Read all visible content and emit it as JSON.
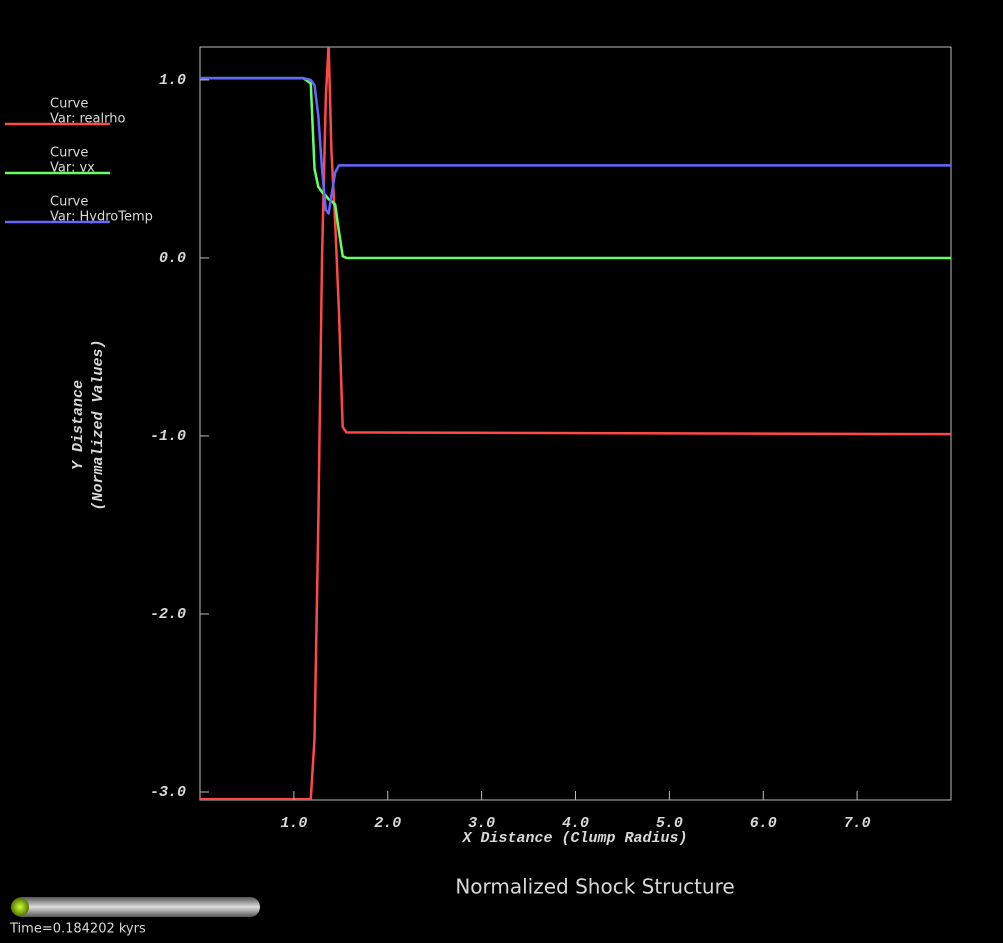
{
  "chart_data": {
    "type": "line",
    "title": "Normalized Shock Structure",
    "x_label": "X Distance (Clump Radius)",
    "y_label": [
      "Y Distance",
      "(Normalized Values)"
    ],
    "time_label": "Time=0.184202 kyrs",
    "x": [
      0,
      1.1,
      1.18,
      1.22,
      1.26,
      1.3,
      1.34,
      1.37,
      1.4,
      1.44,
      1.48,
      1.52,
      1.56,
      8.0
    ],
    "series": [
      {
        "plot_type": "Curve",
        "name": "Var: realrho",
        "color": "#ff4848",
        "values": [
          -3.04,
          -3.04,
          -3.04,
          -2.7,
          -1.5,
          0.0,
          0.9,
          1.2,
          0.6,
          0.2,
          -0.3,
          -0.95,
          -0.98,
          -0.99
        ]
      },
      {
        "plot_type": "Curve",
        "name": "Var: vx",
        "color": "#66ff66",
        "values": [
          1.01,
          1.01,
          0.98,
          0.5,
          0.4,
          0.37,
          0.35,
          0.33,
          0.32,
          0.3,
          0.15,
          0.01,
          0.0,
          0.0
        ]
      },
      {
        "plot_type": "Curve",
        "name": "Var: HydroTemp",
        "color": "#6666ff",
        "values": [
          1.01,
          1.01,
          1.0,
          0.97,
          0.8,
          0.5,
          0.27,
          0.25,
          0.35,
          0.48,
          0.52,
          0.52,
          0.52,
          0.52
        ]
      }
    ],
    "xlim": [
      0,
      8
    ],
    "ylim": [
      -3.045,
      1.185
    ],
    "xticks": [
      {
        "value": 1,
        "label": "1.0"
      },
      {
        "value": 2,
        "label": "2.0"
      },
      {
        "value": 3,
        "label": "3.0"
      },
      {
        "value": 4,
        "label": "4.0"
      },
      {
        "value": 5,
        "label": "5.0"
      },
      {
        "value": 6,
        "label": "6.0"
      },
      {
        "value": 7,
        "label": "7.0"
      }
    ],
    "yticks": [
      {
        "value": -3,
        "label": "-3.0"
      },
      {
        "value": -2,
        "label": "-2.0"
      },
      {
        "value": -1,
        "label": "-1.0"
      },
      {
        "value": 0,
        "label": "0.0"
      },
      {
        "value": 1,
        "label": "1.0"
      }
    ]
  }
}
